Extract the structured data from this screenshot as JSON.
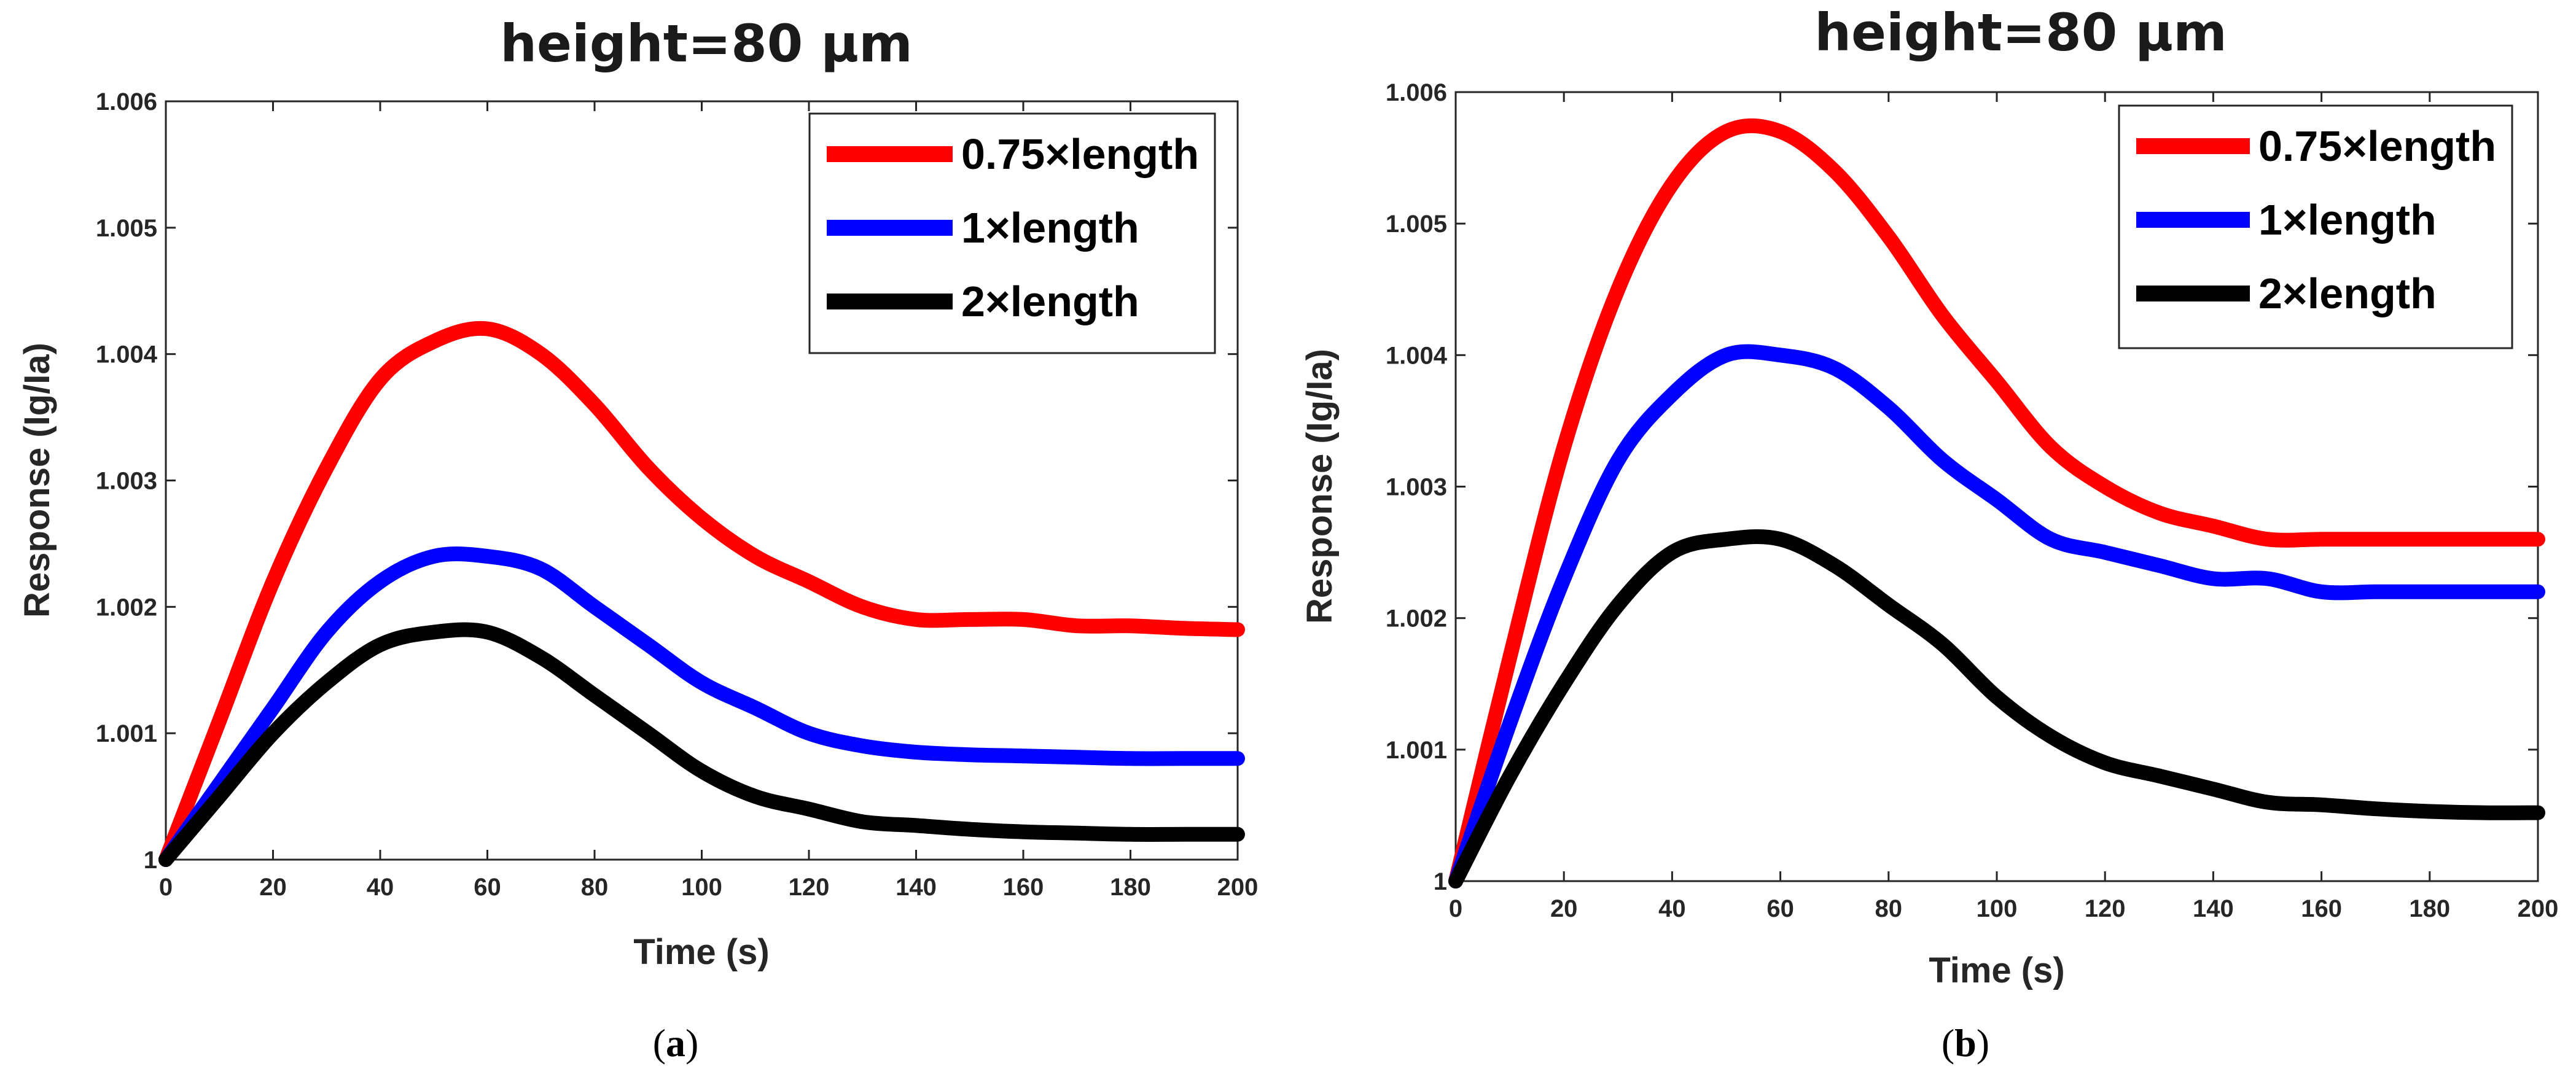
{
  "chart_data": [
    {
      "type": "line",
      "panel": "a",
      "title": "height=80 μm",
      "caption": "a",
      "xlabel": "Time (s)",
      "ylabel": "Response (Ig/Ia)",
      "xlim": [
        0,
        200
      ],
      "ylim": [
        1,
        1.006
      ],
      "xticks": [
        "0",
        "20",
        "40",
        "60",
        "80",
        "100",
        "120",
        "140",
        "160",
        "180",
        "200"
      ],
      "yticks": [
        "1",
        "1.001",
        "1.002",
        "1.003",
        "1.004",
        "1.005",
        "1.006"
      ],
      "legend_position": "top-right",
      "series": [
        {
          "name": "0.75×length",
          "color": "#ff0000",
          "x": [
            0,
            10,
            20,
            30,
            40,
            50,
            60,
            70,
            80,
            90,
            100,
            110,
            120,
            130,
            140,
            150,
            160,
            170,
            180,
            190,
            200
          ],
          "y": [
            1.0,
            1.0011,
            1.0022,
            1.0031,
            1.0038,
            1.0041,
            1.0042,
            1.004,
            1.0036,
            1.0031,
            1.0027,
            1.0024,
            1.0022,
            1.002,
            1.0019,
            1.0019,
            1.0019,
            1.00185,
            1.00185,
            1.00183,
            1.00182
          ]
        },
        {
          "name": "1×length",
          "color": "#0000ff",
          "x": [
            0,
            10,
            20,
            30,
            40,
            50,
            60,
            70,
            80,
            90,
            100,
            110,
            120,
            130,
            140,
            150,
            160,
            170,
            180,
            190,
            200
          ],
          "y": [
            1.0,
            1.0006,
            1.0012,
            1.0018,
            1.0022,
            1.0024,
            1.0024,
            1.0023,
            1.002,
            1.0017,
            1.0014,
            1.0012,
            1.001,
            1.0009,
            1.00085,
            1.00083,
            1.00082,
            1.00081,
            1.0008,
            1.0008,
            1.0008
          ]
        },
        {
          "name": "2×length",
          "color": "#000000",
          "x": [
            0,
            10,
            20,
            30,
            40,
            50,
            60,
            70,
            80,
            90,
            100,
            110,
            120,
            130,
            140,
            150,
            160,
            170,
            180,
            190,
            200
          ],
          "y": [
            1.0,
            1.0005,
            1.001,
            1.0014,
            1.0017,
            1.0018,
            1.0018,
            1.0016,
            1.0013,
            1.001,
            1.0007,
            1.0005,
            1.0004,
            1.0003,
            1.00027,
            1.00024,
            1.00022,
            1.00021,
            1.0002,
            1.0002,
            1.0002
          ]
        }
      ]
    },
    {
      "type": "line",
      "panel": "b",
      "title": "height=80 μm",
      "caption": "b",
      "xlabel": "Time (s)",
      "ylabel": "Response (Ig/Ia)",
      "xlim": [
        0,
        200
      ],
      "ylim": [
        1,
        1.006
      ],
      "xticks": [
        "0",
        "20",
        "40",
        "60",
        "80",
        "100",
        "120",
        "140",
        "160",
        "180",
        "200"
      ],
      "yticks": [
        "1",
        "1.001",
        "1.002",
        "1.003",
        "1.004",
        "1.005",
        "1.006"
      ],
      "legend_position": "top-right",
      "series": [
        {
          "name": "0.75×length",
          "color": "#ff0000",
          "x": [
            0,
            10,
            20,
            30,
            40,
            50,
            60,
            70,
            80,
            90,
            100,
            110,
            120,
            130,
            140,
            150,
            160,
            170,
            180,
            190,
            200
          ],
          "y": [
            1.0,
            1.0017,
            1.0033,
            1.0045,
            1.0053,
            1.0057,
            1.0057,
            1.0054,
            1.0049,
            1.0043,
            1.0038,
            1.0033,
            1.003,
            1.0028,
            1.0027,
            1.0026,
            1.0026,
            1.0026,
            1.0026,
            1.0026,
            1.0026
          ]
        },
        {
          "name": "1×length",
          "color": "#0000ff",
          "x": [
            0,
            10,
            20,
            30,
            40,
            50,
            60,
            70,
            80,
            90,
            100,
            110,
            120,
            130,
            140,
            150,
            160,
            170,
            180,
            190,
            200
          ],
          "y": [
            1.0,
            1.0012,
            1.0023,
            1.0032,
            1.0037,
            1.004,
            1.004,
            1.0039,
            1.0036,
            1.0032,
            1.0029,
            1.0026,
            1.0025,
            1.0024,
            1.0023,
            1.0023,
            1.0022,
            1.0022,
            1.0022,
            1.0022,
            1.0022
          ]
        },
        {
          "name": "2×length",
          "color": "#000000",
          "x": [
            0,
            10,
            20,
            30,
            40,
            50,
            60,
            70,
            80,
            90,
            100,
            110,
            120,
            130,
            140,
            150,
            160,
            170,
            180,
            190,
            200
          ],
          "y": [
            1.0,
            1.0008,
            1.0015,
            1.0021,
            1.0025,
            1.0026,
            1.0026,
            1.0024,
            1.0021,
            1.0018,
            1.0014,
            1.0011,
            1.0009,
            1.0008,
            1.0007,
            1.0006,
            1.00058,
            1.00055,
            1.00053,
            1.00052,
            1.00052
          ]
        }
      ]
    }
  ]
}
